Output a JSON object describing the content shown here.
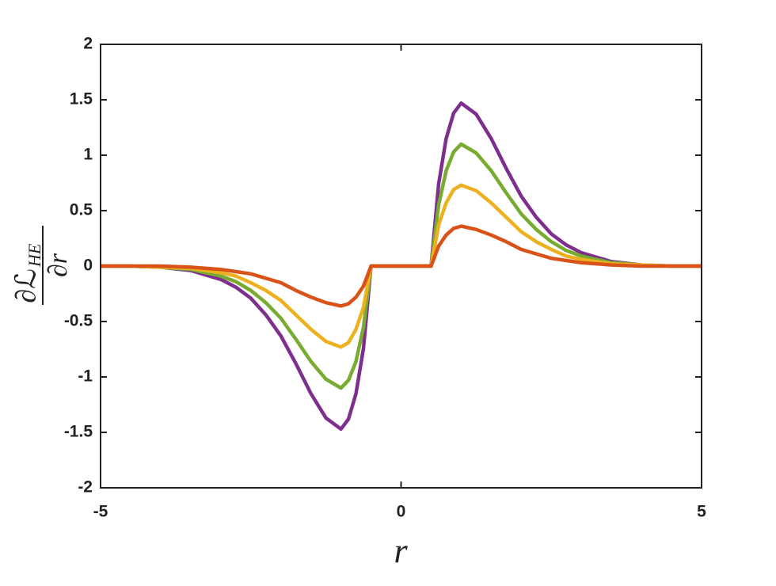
{
  "chart_data": {
    "type": "line",
    "xlabel": "r",
    "ylabel": {
      "numerator": "∂ℒ",
      "subscript": "HE",
      "denominator": "∂r"
    },
    "x": [
      -5,
      -4.5,
      -4,
      -3.5,
      -3,
      -2.75,
      -2.5,
      -2.25,
      -2,
      -1.75,
      -1.5,
      -1.25,
      -1,
      -0.875,
      -0.75,
      -0.625,
      -0.5,
      0,
      0.5,
      0.625,
      0.75,
      0.875,
      1,
      1.25,
      1.5,
      1.75,
      2,
      2.25,
      2.5,
      2.75,
      3,
      3.5,
      4,
      4.5,
      5
    ],
    "series": [
      {
        "color": "#7e2f8e",
        "values": [
          0,
          0,
          -0.01,
          -0.04,
          -0.12,
          -0.19,
          -0.29,
          -0.44,
          -0.63,
          -0.88,
          -1.15,
          -1.37,
          -1.47,
          -1.38,
          -1.15,
          -0.74,
          0,
          0,
          0,
          0.74,
          1.15,
          1.38,
          1.47,
          1.37,
          1.15,
          0.88,
          0.63,
          0.44,
          0.29,
          0.19,
          0.12,
          0.04,
          0.01,
          0,
          0
        ]
      },
      {
        "color": "#77ac30",
        "values": [
          0,
          0,
          -0.01,
          -0.03,
          -0.09,
          -0.14,
          -0.22,
          -0.33,
          -0.47,
          -0.66,
          -0.86,
          -1.02,
          -1.1,
          -1.03,
          -0.86,
          -0.55,
          0,
          0,
          0,
          0.55,
          0.86,
          1.03,
          1.1,
          1.02,
          0.86,
          0.66,
          0.47,
          0.33,
          0.22,
          0.14,
          0.09,
          0.03,
          0.01,
          0,
          0
        ]
      },
      {
        "color": "#edb120",
        "values": [
          0,
          0,
          -0.01,
          -0.02,
          -0.06,
          -0.09,
          -0.15,
          -0.22,
          -0.31,
          -0.44,
          -0.57,
          -0.68,
          -0.73,
          -0.69,
          -0.57,
          -0.37,
          0,
          0,
          0,
          0.37,
          0.57,
          0.69,
          0.73,
          0.68,
          0.57,
          0.44,
          0.31,
          0.22,
          0.15,
          0.09,
          0.06,
          0.02,
          0.01,
          0,
          0
        ]
      },
      {
        "color": "#d95319",
        "values": [
          0,
          0,
          0,
          -0.01,
          -0.03,
          -0.05,
          -0.07,
          -0.11,
          -0.15,
          -0.22,
          -0.28,
          -0.33,
          -0.36,
          -0.34,
          -0.28,
          -0.18,
          0,
          0,
          0,
          0.18,
          0.28,
          0.34,
          0.36,
          0.33,
          0.28,
          0.22,
          0.15,
          0.11,
          0.07,
          0.05,
          0.03,
          0.01,
          0,
          0,
          0
        ]
      }
    ],
    "xlim": [
      -5,
      5
    ],
    "xticks": [
      -5,
      0,
      5
    ],
    "ylim": [
      -2,
      2
    ],
    "yticks": [
      -2,
      -1.5,
      -1,
      -0.5,
      0,
      0.5,
      1,
      1.5,
      2
    ],
    "grid": false
  }
}
